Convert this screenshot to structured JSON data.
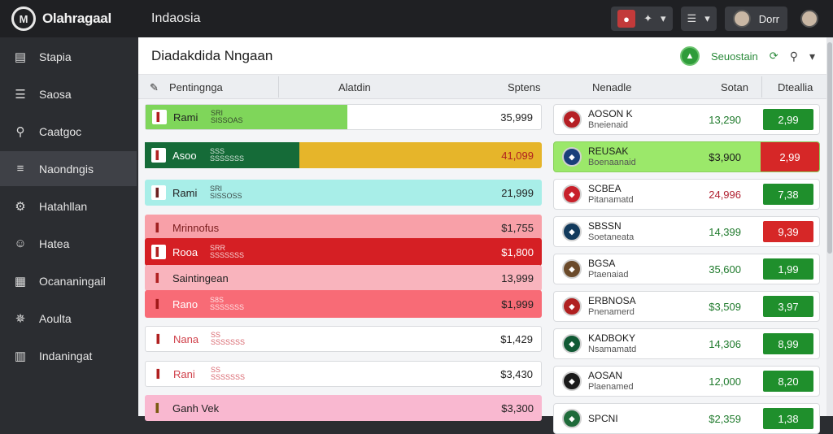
{
  "topbar": {
    "logo_text": "Olahragaal",
    "title": "Indaosia",
    "user_label": "Dorr"
  },
  "sidebar": {
    "items": [
      {
        "label": "Stapia",
        "icon": "stack-icon"
      },
      {
        "label": "Saosa",
        "icon": "list-icon"
      },
      {
        "label": "Caatgoc",
        "icon": "search-icon"
      },
      {
        "label": "Naondngis",
        "icon": "menu-icon"
      },
      {
        "label": "Hatahllan",
        "icon": "gear-icon"
      },
      {
        "label": "Hatea",
        "icon": "person-icon"
      },
      {
        "label": "Ocananingail",
        "icon": "grid-icon"
      },
      {
        "label": "Aoulta",
        "icon": "settings-icon"
      },
      {
        "label": "Indaningat",
        "icon": "doc-icon"
      }
    ],
    "active_index": 3
  },
  "main": {
    "title": "Diadakdida Nngaan",
    "header_right_label": "Seuostain",
    "columns": [
      "Pentingnga",
      "Alatdin",
      "Sptens",
      "Nenadle",
      "Sotan",
      "Dteallia"
    ]
  },
  "left_rows": [
    {
      "name": "Rami",
      "sub1": "SRI",
      "sub2": "SISSOAS",
      "value": "35,999",
      "bg": "#ffffff",
      "fill": "#7fd65a",
      "fill_pct": 0.51,
      "text": "#222",
      "flag_bg": "#ffffff",
      "flag_fg": "#b02020"
    },
    {
      "name": "Asoo",
      "sub1": "SSS",
      "sub2": "SSSSSSS",
      "value": "41,099",
      "bg": "#e6b52a",
      "fill": "#156b38",
      "fill_pct": 0.39,
      "text": "#ffffff",
      "val_color": "#b02020",
      "flag_bg": "#ffffff",
      "flag_fg": "#b02020"
    },
    {
      "name": "Rami",
      "sub1": "SRI",
      "sub2": "SISSOSS",
      "value": "21,999",
      "bg": "#a8eee8",
      "fill": "#a8eee8",
      "fill_pct": 0,
      "text": "#222",
      "flag_bg": "#ffffff",
      "flag_fg": "#6b2020"
    },
    {
      "name": "Mrinnofus",
      "sub1": "",
      "sub2": "",
      "value": "$1,755",
      "bg": "#f8a0a8",
      "fill": "#f8a0a8",
      "fill_pct": 0,
      "text": "#7a1d1d",
      "flag_bg": "#f8a0a8",
      "flag_fg": "#a02020"
    },
    {
      "name": "Rooa",
      "sub1": "SRR",
      "sub2": "SSSSSSS",
      "value": "$1,800",
      "bg": "#d51f24",
      "fill": "#d51f24",
      "fill_pct": 0,
      "text": "#ffffff",
      "flag_bg": "#ffffff",
      "flag_fg": "#b02020"
    },
    {
      "name": "Saintingean",
      "sub1": "",
      "sub2": "",
      "value": "13,999",
      "bg": "#f9b4bd",
      "fill": "#f9b4bd",
      "fill_pct": 0,
      "text": "#222",
      "flag_bg": "#f9b4bd",
      "flag_fg": "#b02020"
    },
    {
      "name": "Rano",
      "sub1": "S8S",
      "sub2": "SSSSSSS",
      "value": "$1,999",
      "bg": "#f86b76",
      "fill": "#f86b76",
      "fill_pct": 0,
      "text": "#ffffff",
      "val_color": "#222",
      "flag_bg": "#f86b76",
      "flag_fg": "#a01818"
    },
    {
      "name": "Nana",
      "sub1": "SS",
      "sub2": "SSSSSSS",
      "value": "$1,429",
      "bg": "#ffffff",
      "fill": "#ffffff",
      "fill_pct": 0,
      "text": "#d0404a",
      "val_color": "#222",
      "flag_bg": "#ffffff",
      "flag_fg": "#b02020"
    },
    {
      "name": "Rani",
      "sub1": "SS",
      "sub2": "SSSSSSS",
      "value": "$3,430",
      "bg": "#ffffff",
      "fill": "#ffffff",
      "fill_pct": 0,
      "text": "#d0404a",
      "val_color": "#222",
      "flag_bg": "#ffffff",
      "flag_fg": "#b02020"
    },
    {
      "name": "Ganh Vek",
      "sub1": "",
      "sub2": "",
      "value": "$3,300",
      "bg": "#f9b8d0",
      "fill": "#f9b8d0",
      "fill_pct": 0,
      "text": "#222",
      "flag_bg": "#f9b8d0",
      "flag_fg": "#7a5a10"
    }
  ],
  "right_rows": [
    {
      "title": "AOSON K",
      "sub": "Bneienaid",
      "value": "13,290",
      "val_color": "#1f7a2c",
      "odds": "2,99",
      "odds_color": "green",
      "crest_bg": "#b51f24",
      "crest_fg": "#ffffff",
      "hl": false
    },
    {
      "title": "REUSAK",
      "sub": "Boenaanaid",
      "value": "$3,900",
      "val_color": "#1b1b1b",
      "odds": "2,99",
      "odds_color": "red",
      "crest_bg": "#1a3f7a",
      "crest_fg": "#ffffff",
      "hl": true
    },
    {
      "title": "SCBEA",
      "sub": "Pitanamatd",
      "value": "24,996",
      "val_color": "#b02030",
      "odds": "7,38",
      "odds_color": "green",
      "crest_bg": "#c8202a",
      "crest_fg": "#ffffff",
      "hl": false
    },
    {
      "title": "SBSSN",
      "sub": "Soetaneata",
      "value": "14,399",
      "val_color": "#1f7a2c",
      "odds": "9,39",
      "odds_color": "red",
      "crest_bg": "#123a5c",
      "crest_fg": "#ffffff",
      "hl": false
    },
    {
      "title": "BGSA",
      "sub": "Ptaenaiad",
      "value": "35,600",
      "val_color": "#1f7a2c",
      "odds": "1,99",
      "odds_color": "green",
      "crest_bg": "#6b4a2a",
      "crest_fg": "#ffffff",
      "hl": false
    },
    {
      "title": "ERBNOSA",
      "sub": "Pnenamerd",
      "value": "$3,509",
      "val_color": "#1f7a2c",
      "odds": "3,97",
      "odds_color": "green",
      "crest_bg": "#b02020",
      "crest_fg": "#ffffff",
      "hl": false
    },
    {
      "title": "KADBOKY",
      "sub": "Nsamamatd",
      "value": "14,306",
      "val_color": "#1f7a2c",
      "odds": "8,99",
      "odds_color": "green",
      "crest_bg": "#115a35",
      "crest_fg": "#ffffff",
      "hl": false
    },
    {
      "title": "AOSAN",
      "sub": "Plaenamed",
      "value": "12,000",
      "val_color": "#1f7a2c",
      "odds": "8,20",
      "odds_color": "green",
      "crest_bg": "#1a1a1a",
      "crest_fg": "#ffffff",
      "hl": false
    },
    {
      "title": "SPCNI",
      "sub": "",
      "value": "$2,359",
      "val_color": "#1f7a2c",
      "odds": "1,38",
      "odds_color": "green",
      "crest_bg": "#1f6b3a",
      "crest_fg": "#ffffff",
      "hl": false
    }
  ]
}
